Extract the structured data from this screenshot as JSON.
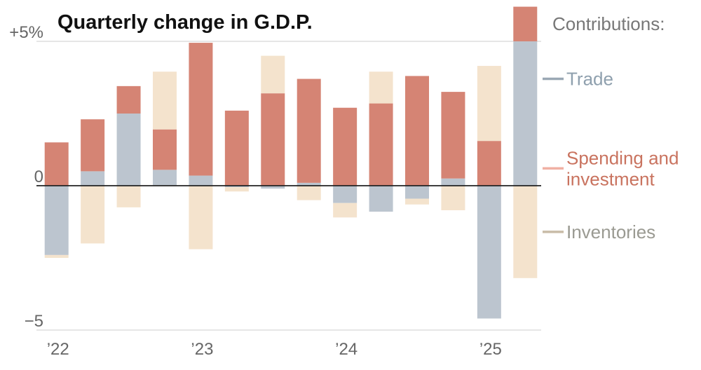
{
  "chart_data": {
    "type": "bar",
    "stacked": true,
    "title": "Quarterly change in G.D.P.",
    "legend_title": "Contributions:",
    "y_ticks": [
      {
        "value": 5,
        "label": "+5%"
      },
      {
        "value": 0,
        "label": "0"
      },
      {
        "value": -5,
        "label": "−5"
      }
    ],
    "x_labels": [
      {
        "index": 0,
        "label": "’22"
      },
      {
        "index": 4,
        "label": "’23"
      },
      {
        "index": 8,
        "label": "’24"
      },
      {
        "index": 12,
        "label": "’25"
      }
    ],
    "ylim": [
      -5.1,
      6.3
    ],
    "categories": [
      "2022 Q1",
      "2022 Q2",
      "2022 Q3",
      "2022 Q4",
      "2023 Q1",
      "2023 Q2",
      "2023 Q3",
      "2023 Q4",
      "2024 Q1",
      "2024 Q2",
      "2024 Q3",
      "2024 Q4",
      "2025 Q1",
      "2025 Q2"
    ],
    "series": [
      {
        "name": "Trade",
        "color": "#bcc5cf",
        "legend_color": "#9aa8b4",
        "values": [
          -2.4,
          0.5,
          2.5,
          0.55,
          0.35,
          -0.05,
          -0.1,
          0.1,
          -0.6,
          -0.9,
          -0.45,
          0.25,
          -4.6,
          5.0
        ]
      },
      {
        "name": "Spending and investment",
        "color": "#d58474",
        "legend_color": "#f0b1a4",
        "values": [
          1.5,
          1.8,
          0.95,
          1.4,
          4.6,
          2.6,
          3.2,
          3.6,
          2.7,
          2.85,
          3.8,
          3.0,
          1.55,
          1.2
        ]
      },
      {
        "name": "Inventories",
        "color": "#f4e3cd",
        "legend_color": "#c9bca8",
        "values": [
          -0.1,
          -2.0,
          -0.75,
          2.0,
          -2.2,
          -0.15,
          1.3,
          -0.5,
          -0.5,
          1.1,
          -0.2,
          -0.85,
          2.6,
          -3.2
        ]
      }
    ],
    "legend": [
      {
        "label_lines": [
          "Trade"
        ],
        "text_color": "#8fa0ae",
        "key_value": 3.7
      },
      {
        "label_lines": [
          "Spending and",
          "investment"
        ],
        "text_color": "#c9735f",
        "key_value": 0.6
      },
      {
        "label_lines": [
          "Inventories"
        ],
        "text_color": "#9a9a92",
        "key_value": -1.6
      }
    ]
  }
}
